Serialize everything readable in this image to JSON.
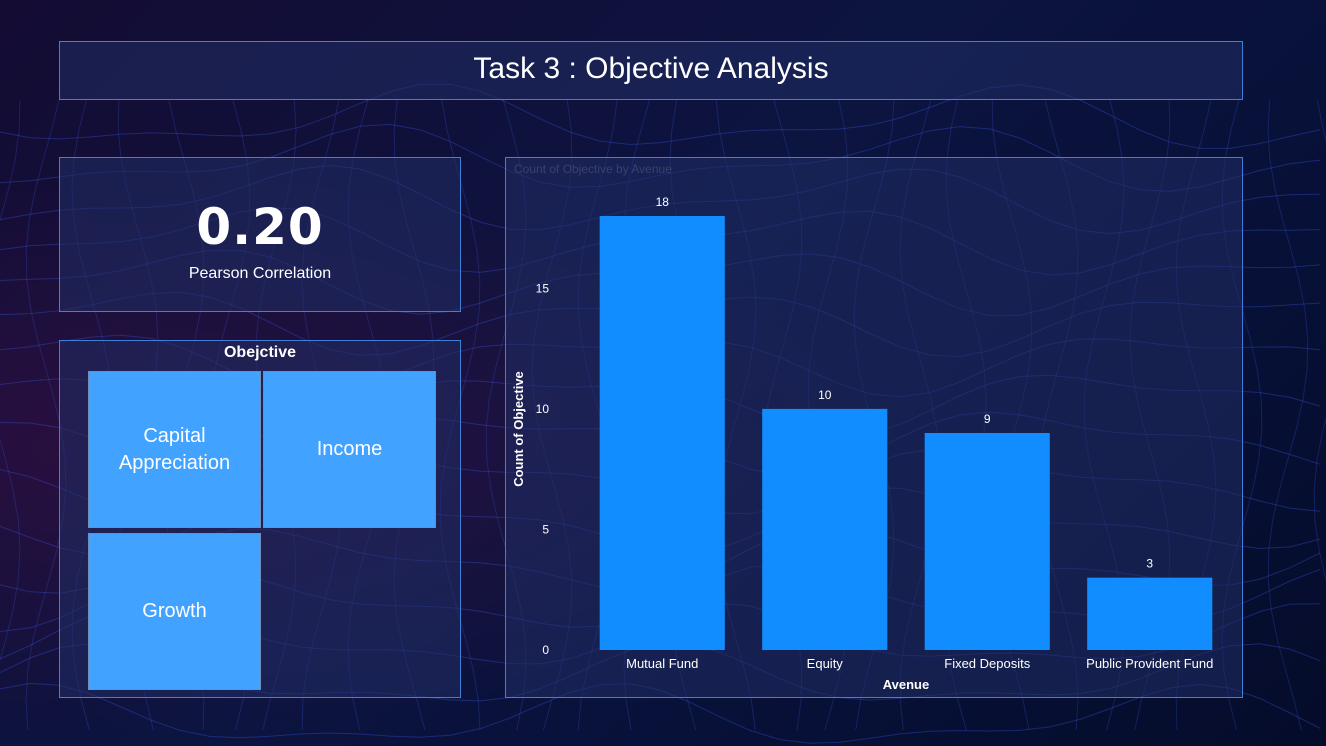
{
  "header": {
    "title": "Task 3 : Objective Analysis"
  },
  "kpi": {
    "value": "0.20",
    "label": "Pearson Correlation"
  },
  "treemap": {
    "title": "Obejctive",
    "tiles": [
      "Capital Appreciation",
      "Income",
      "Growth"
    ]
  },
  "colors": {
    "bar": "#118dff",
    "tile": "#41a2ff",
    "panel_border": "#3f7fd6"
  },
  "chart_data": {
    "type": "bar",
    "title": "Count of Objective by Avenue",
    "categories": [
      "Mutual Fund",
      "Equity",
      "Fixed Deposits",
      "Public Provident Fund"
    ],
    "values": [
      18,
      10,
      9,
      3
    ],
    "xlabel": "Avenue",
    "ylabel": "Count of Objective",
    "yticks": [
      0,
      5,
      10,
      15
    ],
    "ylim": [
      0,
      18
    ],
    "grid": false,
    "legend": "none"
  }
}
